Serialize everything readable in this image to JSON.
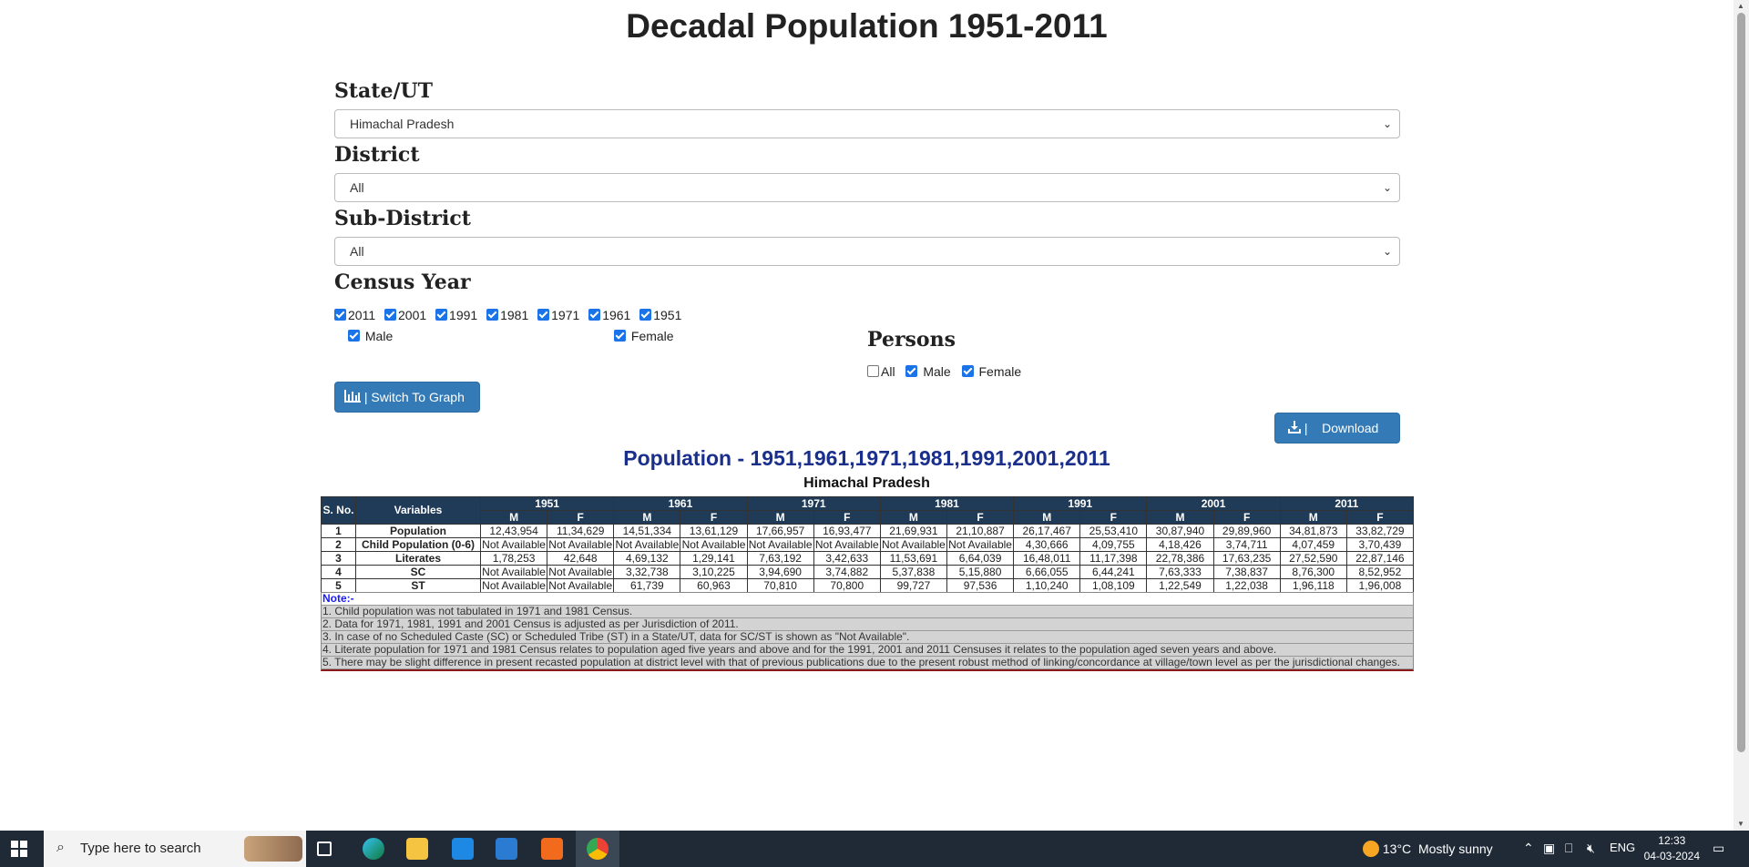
{
  "page_title": "Decadal Population 1951-2011",
  "form": {
    "state_label": "State/UT",
    "state_value": "Himachal Pradesh",
    "district_label": "District",
    "district_value": "All",
    "subdistrict_label": "Sub-District",
    "subdistrict_value": "All",
    "census_label": "Census Year",
    "years": [
      "2011",
      "2001",
      "1991",
      "1981",
      "1971",
      "1961",
      "1951"
    ],
    "male_label": "Male",
    "female_label": "Female",
    "persons_label": "Persons",
    "persons_all": "All",
    "persons_male": "Male",
    "persons_female": "Female"
  },
  "buttons": {
    "graph": "| Switch To Graph",
    "download": "|    Download"
  },
  "report": {
    "title": "Population - 1951,1961,1971,1981,1991,2001,2011",
    "subtitle": "Himachal Pradesh"
  },
  "table": {
    "col_sno": "S. No.",
    "col_var": "Variables",
    "years": [
      "1951",
      "1961",
      "1971",
      "1981",
      "1991",
      "2001",
      "2011"
    ],
    "m": "M",
    "f": "F",
    "rows": [
      {
        "sno": "1",
        "var": "Population",
        "vals": [
          "12,43,954",
          "11,34,629",
          "14,51,334",
          "13,61,129",
          "17,66,957",
          "16,93,477",
          "21,69,931",
          "21,10,887",
          "26,17,467",
          "25,53,410",
          "30,87,940",
          "29,89,960",
          "34,81,873",
          "33,82,729"
        ]
      },
      {
        "sno": "2",
        "var": "Child Population (0-6)",
        "vals": [
          "Not Available",
          "Not Available",
          "Not Available",
          "Not Available",
          "Not Available",
          "Not Available",
          "Not Available",
          "Not Available",
          "4,30,666",
          "4,09,755",
          "4,18,426",
          "3,74,711",
          "4,07,459",
          "3,70,439"
        ]
      },
      {
        "sno": "3",
        "var": "Literates",
        "vals": [
          "1,78,253",
          "42,648",
          "4,69,132",
          "1,29,141",
          "7,63,192",
          "3,42,633",
          "11,53,691",
          "6,64,039",
          "16,48,011",
          "11,17,398",
          "22,78,386",
          "17,63,235",
          "27,52,590",
          "22,87,146"
        ]
      },
      {
        "sno": "4",
        "var": "SC",
        "vals": [
          "Not Available",
          "Not Available",
          "3,32,738",
          "3,10,225",
          "3,94,690",
          "3,74,882",
          "5,37,838",
          "5,15,880",
          "6,66,055",
          "6,44,241",
          "7,63,333",
          "7,38,837",
          "8,76,300",
          "8,52,952"
        ]
      },
      {
        "sno": "5",
        "var": "ST",
        "vals": [
          "Not Available",
          "Not Available",
          "61,739",
          "60,963",
          "70,810",
          "70,800",
          "99,727",
          "97,536",
          "1,10,240",
          "1,08,109",
          "1,22,549",
          "1,22,038",
          "1,96,118",
          "1,96,008"
        ]
      }
    ]
  },
  "notes": {
    "heading": "Note:-",
    "items": [
      "1. Child population was not tabulated in 1971 and 1981 Census.",
      "2. Data for 1971, 1981, 1991 and 2001 Census is adjusted as per Jurisdiction of 2011.",
      "3. In case of no Scheduled Caste (SC) or Scheduled Tribe (ST) in a State/UT, data for SC/ST is shown as \"Not Available\".",
      "4. Literate population for 1971 and 1981 Census relates to population aged five years and above and for the 1991, 2001 and 2011 Censuses it relates to the population aged seven years and above.",
      "5. There may be slight difference in present recasted population at district level with that of previous publications due to the present robust method of linking/concordance at village/town level as per the jurisdictional changes."
    ]
  },
  "taskbar": {
    "search_placeholder": "Type here to search",
    "weather": "13°C  Mostly sunny",
    "lang": "ENG",
    "time": "12:33",
    "date": "04-03-2024"
  }
}
